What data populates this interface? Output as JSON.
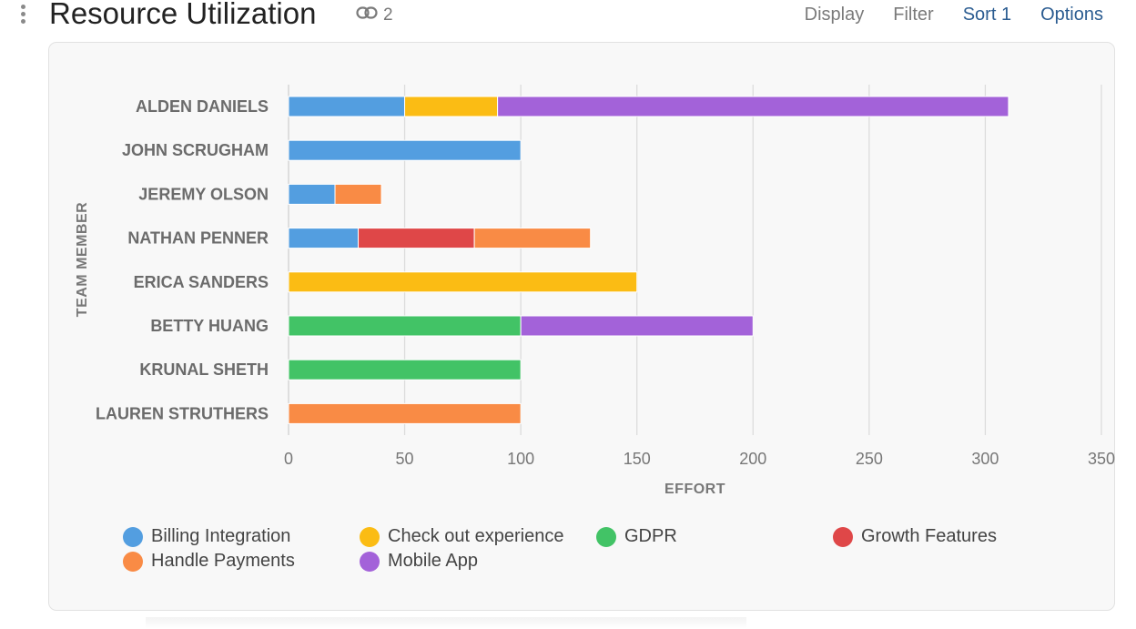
{
  "header": {
    "title": "Resource Utilization",
    "link_count": "2",
    "toolbar": {
      "display": "Display",
      "filter": "Filter",
      "sort": "Sort 1",
      "options": "Options"
    }
  },
  "icons": {
    "drag": "drag-handle-icon",
    "link": "link-icon"
  },
  "chart_data": {
    "type": "bar",
    "orientation": "horizontal",
    "stacked": true,
    "categories": [
      "ALDEN DANIELS",
      "JOHN SCRUGHAM",
      "JEREMY OLSON",
      "NATHAN PENNER",
      "ERICA SANDERS",
      "BETTY HUANG",
      "KRUNAL SHETH",
      "LAUREN STRUTHERS"
    ],
    "series": [
      {
        "name": "Billing Integration",
        "color": "#539ee0",
        "values": [
          50,
          100,
          20,
          30,
          0,
          0,
          0,
          0
        ]
      },
      {
        "name": "Check out experience",
        "color": "#fbbc14",
        "values": [
          40,
          0,
          0,
          0,
          150,
          0,
          0,
          0
        ]
      },
      {
        "name": "GDPR",
        "color": "#42c366",
        "values": [
          0,
          0,
          0,
          0,
          0,
          100,
          100,
          0
        ]
      },
      {
        "name": "Growth Features",
        "color": "#df4748",
        "values": [
          0,
          0,
          0,
          50,
          0,
          0,
          0,
          0
        ]
      },
      {
        "name": "Handle Payments",
        "color": "#f98b45",
        "values": [
          0,
          0,
          20,
          50,
          0,
          0,
          0,
          100
        ]
      },
      {
        "name": "Mobile App",
        "color": "#a362d9",
        "values": [
          220,
          0,
          0,
          0,
          0,
          100,
          0,
          0
        ]
      }
    ],
    "xlabel": "EFFORT",
    "ylabel": "TEAM MEMBER",
    "xlim": [
      0,
      350
    ],
    "xticks": [
      0,
      50,
      100,
      150,
      200,
      250,
      300,
      350
    ],
    "grid": true,
    "legend_position": "bottom"
  }
}
